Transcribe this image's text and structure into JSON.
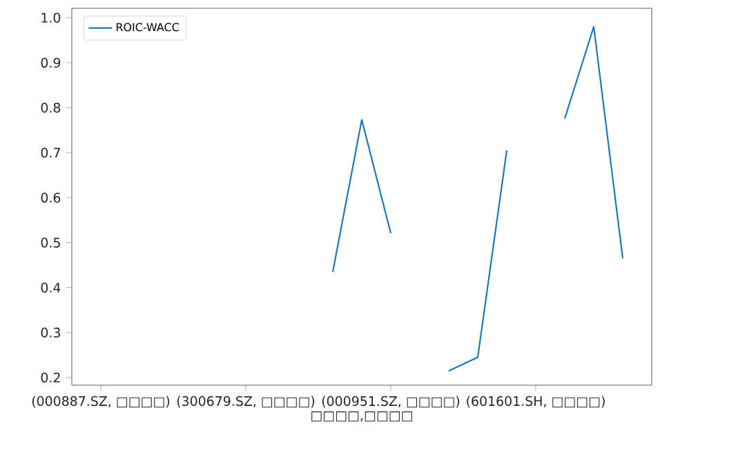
{
  "chart_data": {
    "type": "line",
    "categories": [
      "(000887.SZ, □□□□)",
      null,
      null,
      null,
      null,
      "(300679.SZ, □□□□)",
      null,
      null,
      null,
      null,
      "(000951.SZ, □□□□)",
      null,
      null,
      null,
      null,
      "(601601.SH, □□□□)",
      null,
      null,
      null
    ],
    "series": [
      {
        "name": "ROIC-WACC",
        "color": "#1f77b4",
        "values": [
          null,
          null,
          null,
          null,
          null,
          null,
          null,
          null,
          0.435,
          0.773,
          0.521,
          null,
          0.215,
          0.245,
          0.705,
          null,
          0.776,
          0.98,
          0.465
        ]
      }
    ],
    "xlabel": "□□□□,□□□□",
    "ylim": [
      0.183,
      1.021
    ],
    "yticks": [
      0.2,
      0.3,
      0.4,
      0.5,
      0.6,
      0.7,
      0.8,
      0.9,
      {
        "value": 1.0,
        "label": "1.0"
      }
    ],
    "legend": "top left",
    "grid": false
  }
}
